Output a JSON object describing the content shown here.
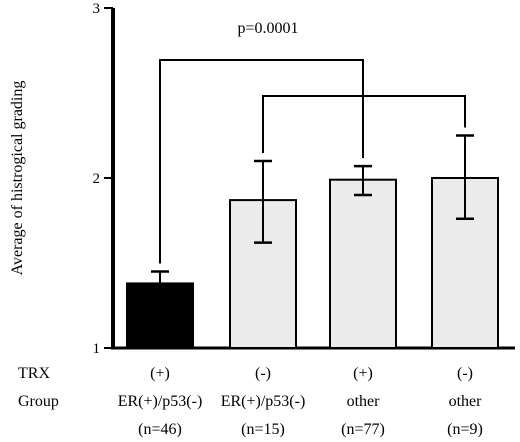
{
  "chart_data": {
    "type": "bar",
    "ylabel": "Average of histrogical grading",
    "ylim": [
      1,
      3
    ],
    "yticks": [
      "1",
      "2",
      "3"
    ],
    "annotation": "p=0.0001",
    "row_labels": {
      "trx": "TRX",
      "group": "Group"
    },
    "categories": [
      {
        "trx": "(+)",
        "group": "ER(+)/p53(-)",
        "n": "(n=46)"
      },
      {
        "trx": "(-)",
        "group": "ER(+)/p53(-)",
        "n": "(n=15)"
      },
      {
        "trx": "(+)",
        "group": "other",
        "n": "(n=77)"
      },
      {
        "trx": "(-)",
        "group": "other",
        "n": "(n=9)"
      }
    ],
    "values": [
      1.38,
      1.87,
      1.99,
      2.0
    ],
    "error_bars": [
      {
        "upper": 1.45
      },
      {
        "upper": 2.1,
        "lower": 1.62
      },
      {
        "upper": 2.07,
        "lower": 1.9
      },
      {
        "upper": 2.25,
        "lower": 1.76
      }
    ],
    "bar_colors": [
      "#000000",
      "#ebebeb",
      "#ebebeb",
      "#ebebeb"
    ],
    "comparison_brackets": [
      [
        0,
        2
      ],
      [
        1,
        3
      ]
    ]
  }
}
